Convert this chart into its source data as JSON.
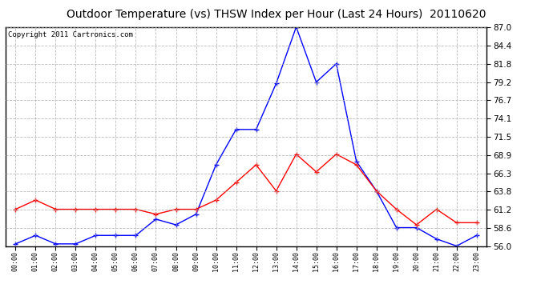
{
  "title": "Outdoor Temperature (vs) THSW Index per Hour (Last 24 Hours)  20110620",
  "copyright": "Copyright 2011 Cartronics.com",
  "x_labels": [
    "00:00",
    "01:00",
    "02:00",
    "03:00",
    "04:00",
    "05:00",
    "06:00",
    "07:00",
    "08:00",
    "09:00",
    "10:00",
    "11:00",
    "12:00",
    "13:00",
    "14:00",
    "15:00",
    "16:00",
    "17:00",
    "18:00",
    "19:00",
    "20:00",
    "21:00",
    "22:00",
    "23:00"
  ],
  "blue_data": [
    56.3,
    57.5,
    56.3,
    56.3,
    57.5,
    57.5,
    57.5,
    59.8,
    59.0,
    60.5,
    67.5,
    72.5,
    72.5,
    79.0,
    87.0,
    79.2,
    81.8,
    68.0,
    63.8,
    58.6,
    58.6,
    57.0,
    56.0,
    57.5
  ],
  "red_data": [
    61.2,
    62.5,
    61.2,
    61.2,
    61.2,
    61.2,
    61.2,
    60.5,
    61.2,
    61.2,
    62.5,
    65.0,
    67.5,
    63.8,
    69.0,
    66.5,
    69.0,
    67.5,
    63.8,
    61.2,
    59.0,
    61.2,
    59.3,
    59.3
  ],
  "ylim": [
    56.0,
    87.0
  ],
  "yticks": [
    56.0,
    58.6,
    61.2,
    63.8,
    66.3,
    68.9,
    71.5,
    74.1,
    76.7,
    79.2,
    81.8,
    84.4,
    87.0
  ],
  "bg_color": "#ffffff",
  "plot_bg": "#ffffff",
  "grid_color": "#aaaaaa",
  "blue_color": "blue",
  "red_color": "red",
  "title_fontsize": 10,
  "copyright_fontsize": 6.5,
  "marker_size": 3.0
}
